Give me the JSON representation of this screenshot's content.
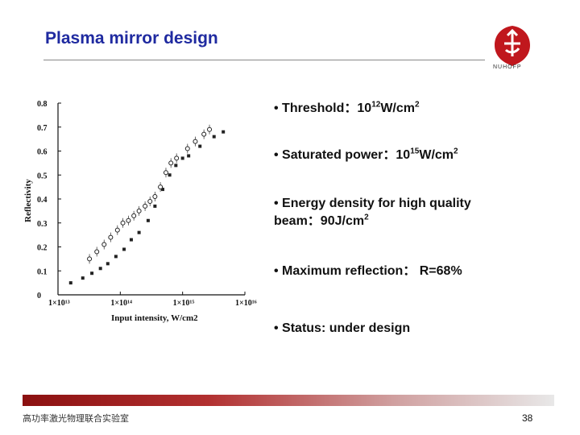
{
  "slide": {
    "title": "Plasma mirror design",
    "logo_text": "NUHOFP",
    "footer_text": "高功率激光物理联合实验室",
    "page_number": "38"
  },
  "bullets": [
    {
      "text": "• Threshold：10",
      "sup": "12",
      "tail": "W/cm",
      "sup2": "2"
    },
    {
      "text": "• Saturated power：10",
      "sup": "15",
      "tail": "W/cm",
      "sup2": "2"
    },
    {
      "text": "• Energy density for high quality",
      "line2": "beam：90J/cm",
      "sup2": "2"
    },
    {
      "text": "• Maximum reflection： R=68%"
    },
    {
      "text": "• Status: under design"
    }
  ],
  "colors": {
    "title": "#1f2aa0",
    "footer_bar": "#8b1010",
    "marker": "#222222"
  },
  "chart_data": {
    "type": "scatter",
    "xlabel": "Input intensity, W/cm2",
    "ylabel": "Reflectivity",
    "xscale": "log",
    "xlim": [
      10000000000000.0,
      1e+16
    ],
    "ylim": [
      0,
      0.8
    ],
    "xtick_labels": [
      "1×10¹³",
      "1×10¹⁴",
      "1×10¹⁵",
      "1×10¹⁶"
    ],
    "ytick_labels": [
      "0",
      "0.1",
      "0.2",
      "0.3",
      "0.4",
      "0.5",
      "0.6",
      "0.7",
      "0.8"
    ],
    "grid": false,
    "series": [
      {
        "marker": "filled-square",
        "points": [
          [
            16000000000000.0,
            0.05
          ],
          [
            25000000000000.0,
            0.07
          ],
          [
            35000000000000.0,
            0.09
          ],
          [
            48000000000000.0,
            0.11
          ],
          [
            63000000000000.0,
            0.13
          ],
          [
            85000000000000.0,
            0.16
          ],
          [
            115000000000000.0,
            0.19
          ],
          [
            150000000000000.0,
            0.23
          ],
          [
            200000000000000.0,
            0.26
          ],
          [
            280000000000000.0,
            0.31
          ],
          [
            360000000000000.0,
            0.37
          ],
          [
            480000000000000.0,
            0.44
          ],
          [
            620000000000000.0,
            0.5
          ],
          [
            780000000000000.0,
            0.54
          ],
          [
            1000000000000000.0,
            0.57
          ],
          [
            1250000000000000.0,
            0.58
          ],
          [
            1900000000000000.0,
            0.62
          ],
          [
            3200000000000000.0,
            0.66
          ],
          [
            4500000000000000.0,
            0.68
          ]
        ]
      },
      {
        "marker": "open-circle",
        "points": [
          [
            32000000000000.0,
            0.15
          ],
          [
            42000000000000.0,
            0.18
          ],
          [
            55000000000000.0,
            0.21
          ],
          [
            70000000000000.0,
            0.24
          ],
          [
            90000000000000.0,
            0.27
          ],
          [
            110000000000000.0,
            0.3
          ],
          [
            135000000000000.0,
            0.31
          ],
          [
            165000000000000.0,
            0.33
          ],
          [
            200000000000000.0,
            0.35
          ],
          [
            250000000000000.0,
            0.37
          ],
          [
            300000000000000.0,
            0.39
          ],
          [
            360000000000000.0,
            0.41
          ],
          [
            440000000000000.0,
            0.45
          ],
          [
            540000000000000.0,
            0.51
          ],
          [
            650000000000000.0,
            0.55
          ],
          [
            800000000000000.0,
            0.57
          ],
          [
            1200000000000000.0,
            0.61
          ],
          [
            1600000000000000.0,
            0.64
          ],
          [
            2200000000000000.0,
            0.67
          ],
          [
            2700000000000000.0,
            0.69
          ]
        ]
      }
    ]
  }
}
